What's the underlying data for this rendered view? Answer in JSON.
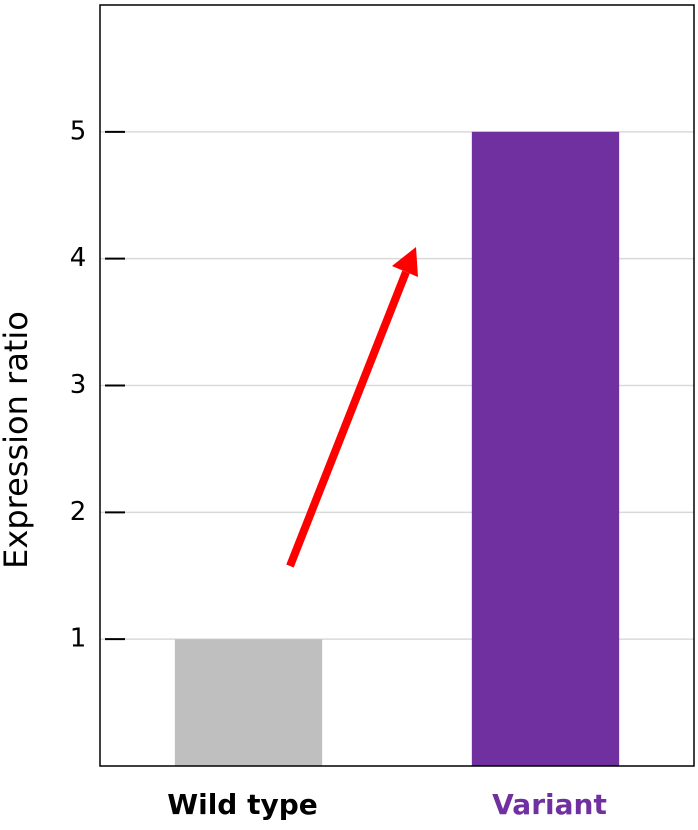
{
  "chart_data": {
    "type": "bar",
    "y_label": "Expression ratio",
    "categories": [
      "Wild type",
      "Variant"
    ],
    "values": [
      1,
      5
    ],
    "colors": [
      "#bfbfbf",
      "#7030a0"
    ],
    "label_colors": [
      "#000000",
      "#7030a0"
    ],
    "ylim": [
      0,
      6
    ],
    "yticks": [
      1,
      2,
      3,
      4,
      5
    ],
    "grid": true
  }
}
